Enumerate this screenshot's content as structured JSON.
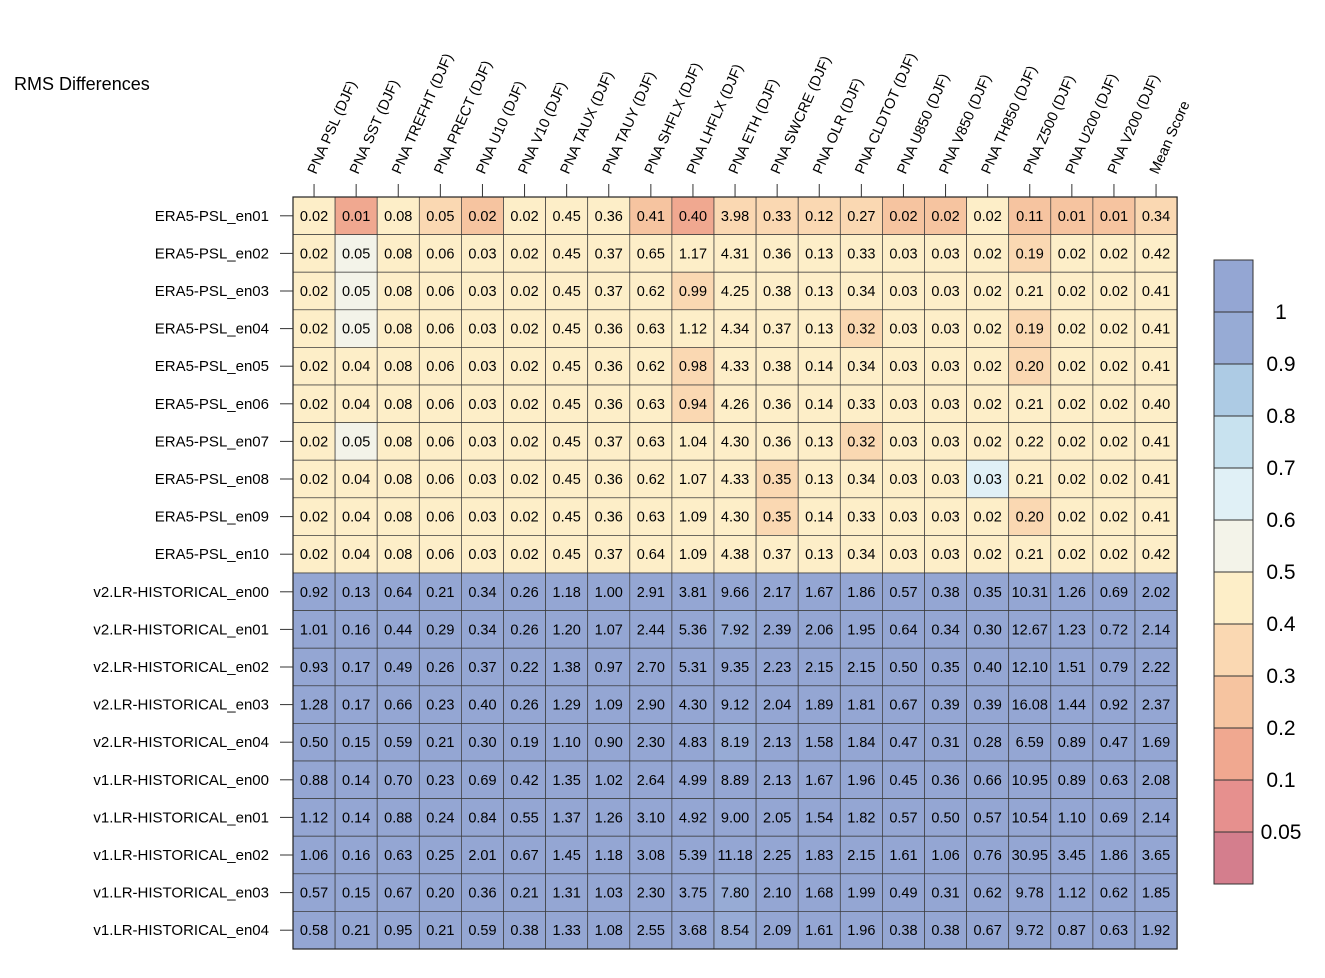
{
  "chart_data": {
    "type": "heatmap",
    "title": "RMS Differences",
    "columns": [
      "PNA PSL (DJF)",
      "PNA SST (DJF)",
      "PNA TREFHT (DJF)",
      "PNA PRECT (DJF)",
      "PNA U10 (DJF)",
      "PNA V10 (DJF)",
      "PNA TAUX (DJF)",
      "PNA TAUY (DJF)",
      "PNA SHFLX (DJF)",
      "PNA LHFLX (DJF)",
      "PNA ETH (DJF)",
      "PNA SWCRE (DJF)",
      "PNA OLR (DJF)",
      "PNA CLDTOT (DJF)",
      "PNA U850 (DJF)",
      "PNA V850 (DJF)",
      "PNA TH850 (DJF)",
      "PNA Z500 (DJF)",
      "PNA U200 (DJF)",
      "PNA V200 (DJF)",
      "Mean Score"
    ],
    "rows": [
      "ERA5-PSL_en01",
      "ERA5-PSL_en02",
      "ERA5-PSL_en03",
      "ERA5-PSL_en04",
      "ERA5-PSL_en05",
      "ERA5-PSL_en06",
      "ERA5-PSL_en07",
      "ERA5-PSL_en08",
      "ERA5-PSL_en09",
      "ERA5-PSL_en10",
      "v2.LR-HISTORICAL_en00",
      "v2.LR-HISTORICAL_en01",
      "v2.LR-HISTORICAL_en02",
      "v2.LR-HISTORICAL_en03",
      "v2.LR-HISTORICAL_en04",
      "v1.LR-HISTORICAL_en00",
      "v1.LR-HISTORICAL_en01",
      "v1.LR-HISTORICAL_en02",
      "v1.LR-HISTORICAL_en03",
      "v1.LR-HISTORICAL_en04"
    ],
    "values": [
      [
        "0.02",
        "0.01",
        "0.08",
        "0.05",
        "0.02",
        "0.02",
        "0.45",
        "0.36",
        "0.41",
        "0.40",
        "3.98",
        "0.33",
        "0.12",
        "0.27",
        "0.02",
        "0.02",
        "0.02",
        "0.11",
        "0.01",
        "0.01",
        "0.34"
      ],
      [
        "0.02",
        "0.05",
        "0.08",
        "0.06",
        "0.03",
        "0.02",
        "0.45",
        "0.37",
        "0.65",
        "1.17",
        "4.31",
        "0.36",
        "0.13",
        "0.33",
        "0.03",
        "0.03",
        "0.02",
        "0.19",
        "0.02",
        "0.02",
        "0.42"
      ],
      [
        "0.02",
        "0.05",
        "0.08",
        "0.06",
        "0.03",
        "0.02",
        "0.45",
        "0.37",
        "0.62",
        "0.99",
        "4.25",
        "0.38",
        "0.13",
        "0.34",
        "0.03",
        "0.03",
        "0.02",
        "0.21",
        "0.02",
        "0.02",
        "0.41"
      ],
      [
        "0.02",
        "0.05",
        "0.08",
        "0.06",
        "0.03",
        "0.02",
        "0.45",
        "0.36",
        "0.63",
        "1.12",
        "4.34",
        "0.37",
        "0.13",
        "0.32",
        "0.03",
        "0.03",
        "0.02",
        "0.19",
        "0.02",
        "0.02",
        "0.41"
      ],
      [
        "0.02",
        "0.04",
        "0.08",
        "0.06",
        "0.03",
        "0.02",
        "0.45",
        "0.36",
        "0.62",
        "0.98",
        "4.33",
        "0.38",
        "0.14",
        "0.34",
        "0.03",
        "0.03",
        "0.02",
        "0.20",
        "0.02",
        "0.02",
        "0.41"
      ],
      [
        "0.02",
        "0.04",
        "0.08",
        "0.06",
        "0.03",
        "0.02",
        "0.45",
        "0.36",
        "0.63",
        "0.94",
        "4.26",
        "0.36",
        "0.14",
        "0.33",
        "0.03",
        "0.03",
        "0.02",
        "0.21",
        "0.02",
        "0.02",
        "0.40"
      ],
      [
        "0.02",
        "0.05",
        "0.08",
        "0.06",
        "0.03",
        "0.02",
        "0.45",
        "0.37",
        "0.63",
        "1.04",
        "4.30",
        "0.36",
        "0.13",
        "0.32",
        "0.03",
        "0.03",
        "0.02",
        "0.22",
        "0.02",
        "0.02",
        "0.41"
      ],
      [
        "0.02",
        "0.04",
        "0.08",
        "0.06",
        "0.03",
        "0.02",
        "0.45",
        "0.36",
        "0.62",
        "1.07",
        "4.33",
        "0.35",
        "0.13",
        "0.34",
        "0.03",
        "0.03",
        "0.03",
        "0.21",
        "0.02",
        "0.02",
        "0.41"
      ],
      [
        "0.02",
        "0.04",
        "0.08",
        "0.06",
        "0.03",
        "0.02",
        "0.45",
        "0.36",
        "0.63",
        "1.09",
        "4.30",
        "0.35",
        "0.14",
        "0.33",
        "0.03",
        "0.03",
        "0.02",
        "0.20",
        "0.02",
        "0.02",
        "0.41"
      ],
      [
        "0.02",
        "0.04",
        "0.08",
        "0.06",
        "0.03",
        "0.02",
        "0.45",
        "0.37",
        "0.64",
        "1.09",
        "4.38",
        "0.37",
        "0.13",
        "0.34",
        "0.03",
        "0.03",
        "0.02",
        "0.21",
        "0.02",
        "0.02",
        "0.42"
      ],
      [
        "0.92",
        "0.13",
        "0.64",
        "0.21",
        "0.34",
        "0.26",
        "1.18",
        "1.00",
        "2.91",
        "3.81",
        "9.66",
        "2.17",
        "1.67",
        "1.86",
        "0.57",
        "0.38",
        "0.35",
        "10.31",
        "1.26",
        "0.69",
        "2.02"
      ],
      [
        "1.01",
        "0.16",
        "0.44",
        "0.29",
        "0.34",
        "0.26",
        "1.20",
        "1.07",
        "2.44",
        "5.36",
        "7.92",
        "2.39",
        "2.06",
        "1.95",
        "0.64",
        "0.34",
        "0.30",
        "12.67",
        "1.23",
        "0.72",
        "2.14"
      ],
      [
        "0.93",
        "0.17",
        "0.49",
        "0.26",
        "0.37",
        "0.22",
        "1.38",
        "0.97",
        "2.70",
        "5.31",
        "9.35",
        "2.23",
        "2.15",
        "2.15",
        "0.50",
        "0.35",
        "0.40",
        "12.10",
        "1.51",
        "0.79",
        "2.22"
      ],
      [
        "1.28",
        "0.17",
        "0.66",
        "0.23",
        "0.40",
        "0.26",
        "1.29",
        "1.09",
        "2.90",
        "4.30",
        "9.12",
        "2.04",
        "1.89",
        "1.81",
        "0.67",
        "0.39",
        "0.39",
        "16.08",
        "1.44",
        "0.92",
        "2.37"
      ],
      [
        "0.50",
        "0.15",
        "0.59",
        "0.21",
        "0.30",
        "0.19",
        "1.10",
        "0.90",
        "2.30",
        "4.83",
        "8.19",
        "2.13",
        "1.58",
        "1.84",
        "0.47",
        "0.31",
        "0.28",
        "6.59",
        "0.89",
        "0.47",
        "1.69"
      ],
      [
        "0.88",
        "0.14",
        "0.70",
        "0.23",
        "0.69",
        "0.42",
        "1.35",
        "1.02",
        "2.64",
        "4.99",
        "8.89",
        "2.13",
        "1.67",
        "1.96",
        "0.45",
        "0.36",
        "0.66",
        "10.95",
        "0.89",
        "0.63",
        "2.08"
      ],
      [
        "1.12",
        "0.14",
        "0.88",
        "0.24",
        "0.84",
        "0.55",
        "1.37",
        "1.26",
        "3.10",
        "4.92",
        "9.00",
        "2.05",
        "1.54",
        "1.82",
        "0.57",
        "0.50",
        "0.57",
        "10.54",
        "1.10",
        "0.69",
        "2.14"
      ],
      [
        "1.06",
        "0.16",
        "0.63",
        "0.25",
        "2.01",
        "0.67",
        "1.45",
        "1.18",
        "3.08",
        "5.39",
        "11.18",
        "2.25",
        "1.83",
        "2.15",
        "1.61",
        "1.06",
        "0.76",
        "30.95",
        "3.45",
        "1.86",
        "3.65"
      ],
      [
        "0.57",
        "0.15",
        "0.67",
        "0.20",
        "0.36",
        "0.21",
        "1.31",
        "1.03",
        "2.30",
        "3.75",
        "7.80",
        "2.10",
        "1.68",
        "1.99",
        "0.49",
        "0.31",
        "0.62",
        "9.78",
        "1.12",
        "0.62",
        "1.85"
      ],
      [
        "0.58",
        "0.21",
        "0.95",
        "0.21",
        "0.59",
        "0.38",
        "1.33",
        "1.08",
        "2.55",
        "3.68",
        "8.54",
        "2.09",
        "1.61",
        "1.96",
        "0.38",
        "0.38",
        "0.67",
        "9.72",
        "0.87",
        "0.63",
        "1.92"
      ]
    ],
    "colorbar": {
      "ticks": [
        "1",
        "0.9",
        "0.8",
        "0.7",
        "0.6",
        "0.5",
        "0.4",
        "0.3",
        "0.2",
        "0.1",
        "0.05"
      ],
      "bounds": [
        0.05,
        0.1,
        0.2,
        0.3,
        0.4,
        0.5,
        0.6,
        0.7,
        0.8,
        0.9,
        1
      ],
      "colors": [
        "#d47e8d",
        "#e6908e",
        "#f0a890",
        "#f6c4a0",
        "#fad8b2",
        "#fdeec8",
        "#f3f3e9",
        "#e0f0f6",
        "#c8e2ef",
        "#adcbe4",
        "#97abd5",
        "#94a6d3"
      ]
    }
  }
}
